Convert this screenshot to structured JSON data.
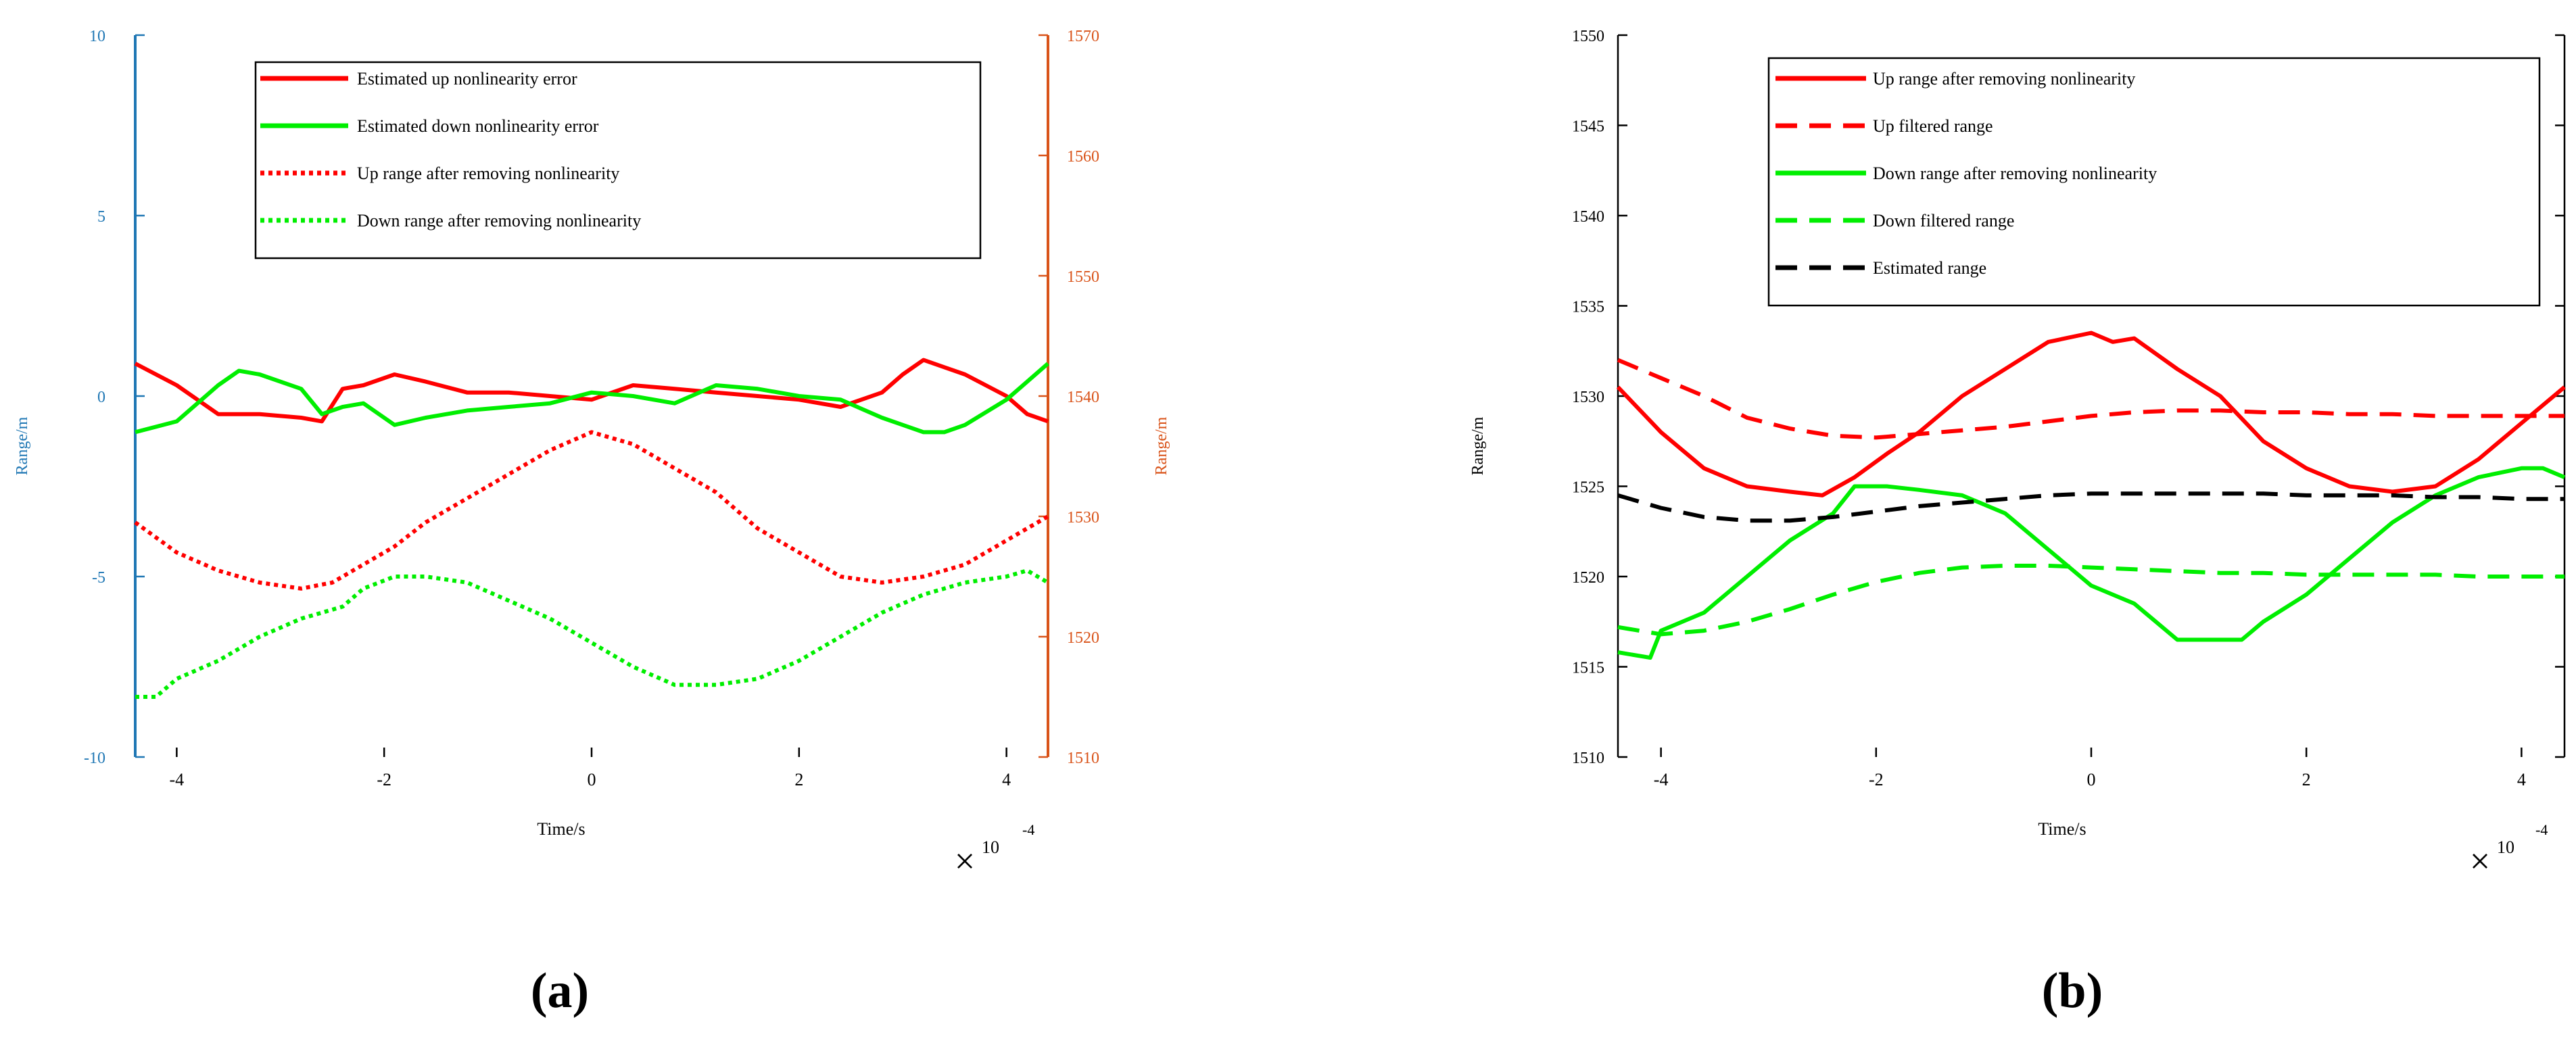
{
  "chart_data": [
    {
      "id": "a",
      "type": "line",
      "panel_label": "(a)",
      "xlabel": "Time/s",
      "x_multiplier_symbol": "×",
      "x_multiplier": "10",
      "x_exponent": "-4",
      "xlim": [
        -4.4,
        4.4
      ],
      "xticks": [
        -4,
        -2,
        0,
        2,
        4
      ],
      "xtick_labels": [
        "-4",
        "-2",
        "0",
        "2",
        "4"
      ],
      "left_axis": {
        "label": "Range/m",
        "color": "#1f77b4",
        "ylim": [
          -10,
          10
        ],
        "ticks": [
          -10,
          -5,
          0,
          5,
          10
        ],
        "tick_labels": [
          "-10",
          "-5",
          "0",
          "5",
          "10"
        ]
      },
      "right_axis": {
        "label": "Range/m",
        "color": "#d95319",
        "ylim": [
          1510,
          1570
        ],
        "ticks": [
          1510,
          1520,
          1530,
          1540,
          1550,
          1560,
          1570
        ],
        "tick_labels": [
          "1510",
          "1520",
          "1530",
          "1540",
          "1550",
          "1560",
          "1570"
        ]
      },
      "legend_position": "top-center",
      "series": [
        {
          "name": "Estimated up nonlinearity error",
          "axis": "left",
          "color": "#ff0000",
          "style": "solid",
          "width": "thick",
          "x": [
            -4.4,
            -4.0,
            -3.6,
            -3.2,
            -2.8,
            -2.6,
            -2.4,
            -2.2,
            -1.9,
            -1.6,
            -1.2,
            -0.8,
            -0.4,
            0,
            0.4,
            0.8,
            1.2,
            1.6,
            2.0,
            2.4,
            2.8,
            3.0,
            3.2,
            3.4,
            3.6,
            3.8,
            4.0,
            4.2,
            4.4
          ],
          "y": [
            0.9,
            0.3,
            -0.5,
            -0.5,
            -0.6,
            -0.7,
            0.2,
            0.3,
            0.6,
            0.4,
            0.1,
            0.1,
            0,
            -0.1,
            0.3,
            0.2,
            0.1,
            0,
            -0.1,
            -0.3,
            0.1,
            0.6,
            1.0,
            0.8,
            0.6,
            0.3,
            0,
            -0.5,
            -0.7
          ]
        },
        {
          "name": "Estimated down nonlinearity error",
          "axis": "left",
          "color": "#00ee00",
          "style": "solid",
          "width": "thick",
          "x": [
            -4.4,
            -4.0,
            -3.6,
            -3.4,
            -3.2,
            -2.8,
            -2.6,
            -2.4,
            -2.2,
            -1.9,
            -1.6,
            -1.2,
            -0.8,
            -0.4,
            0,
            0.4,
            0.8,
            1.2,
            1.6,
            2.0,
            2.4,
            2.8,
            3.0,
            3.2,
            3.4,
            3.6,
            4.0,
            4.2,
            4.4
          ],
          "y": [
            -1.0,
            -0.7,
            0.3,
            0.7,
            0.6,
            0.2,
            -0.5,
            -0.3,
            -0.2,
            -0.8,
            -0.6,
            -0.4,
            -0.3,
            -0.2,
            0.1,
            0,
            -0.2,
            0.3,
            0.2,
            0,
            -0.1,
            -0.6,
            -0.8,
            -1.0,
            -1.0,
            -0.8,
            -0.1,
            0.4,
            0.9
          ]
        },
        {
          "name": "Up range after removing nonlinearity",
          "axis": "right",
          "color": "#ff0000",
          "style": "dotted",
          "width": "thick",
          "x": [
            -4.4,
            -4.0,
            -3.6,
            -3.2,
            -2.8,
            -2.5,
            -2.2,
            -1.9,
            -1.6,
            -1.2,
            -0.8,
            -0.4,
            0,
            0.2,
            0.4,
            0.8,
            1.2,
            1.6,
            2.0,
            2.4,
            2.8,
            3.2,
            3.6,
            4.0,
            4.4
          ],
          "y": [
            1529.5,
            1527,
            1525.5,
            1524.5,
            1524,
            1524.5,
            1526,
            1527.5,
            1529.5,
            1531.5,
            1533.5,
            1535.5,
            1537,
            1536.5,
            1536,
            1534,
            1532,
            1529,
            1527,
            1525,
            1524.5,
            1525,
            1526,
            1528,
            1530
          ]
        },
        {
          "name": "Down range after removing nonlinearity",
          "axis": "right",
          "color": "#00ee00",
          "style": "dotted",
          "width": "thick",
          "x": [
            -4.4,
            -4.2,
            -4.0,
            -3.6,
            -3.2,
            -2.8,
            -2.4,
            -2.2,
            -1.9,
            -1.6,
            -1.2,
            -0.8,
            -0.4,
            0,
            0.4,
            0.8,
            1.2,
            1.6,
            2.0,
            2.4,
            2.8,
            3.2,
            3.6,
            4.0,
            4.2,
            4.4
          ],
          "y": [
            1515,
            1515,
            1516.5,
            1518,
            1520,
            1521.5,
            1522.5,
            1524,
            1525,
            1525,
            1524.5,
            1523,
            1521.5,
            1519.5,
            1517.5,
            1516,
            1516,
            1516.5,
            1518,
            1520,
            1522,
            1523.5,
            1524.5,
            1525,
            1525.5,
            1524.5
          ]
        }
      ]
    },
    {
      "id": "b",
      "type": "line",
      "panel_label": "(b)",
      "xlabel": "Time/s",
      "ylabel": "Range/m",
      "x_multiplier_symbol": "×",
      "x_multiplier": "10",
      "x_exponent": "-4",
      "xlim": [
        -4.4,
        4.4
      ],
      "ylim": [
        1510,
        1550
      ],
      "xticks": [
        -4,
        -2,
        0,
        2,
        4
      ],
      "xtick_labels": [
        "-4",
        "-2",
        "0",
        "2",
        "4"
      ],
      "yticks": [
        1510,
        1515,
        1520,
        1525,
        1530,
        1535,
        1540,
        1545,
        1550
      ],
      "ytick_labels": [
        "1510",
        "1515",
        "1520",
        "1525",
        "1530",
        "1535",
        "1540",
        "1545",
        "1550"
      ],
      "legend_position": "top-center",
      "series": [
        {
          "name": "Up range after removing nonlinearity",
          "color": "#ff0000",
          "style": "solid",
          "width": "thick",
          "x": [
            -4.4,
            -4.0,
            -3.6,
            -3.2,
            -2.8,
            -2.5,
            -2.2,
            -1.9,
            -1.6,
            -1.2,
            -0.8,
            -0.4,
            0,
            0.2,
            0.4,
            0.8,
            1.2,
            1.6,
            2.0,
            2.4,
            2.8,
            3.2,
            3.6,
            4.0,
            4.4
          ],
          "y": [
            1530.5,
            1528,
            1526,
            1525,
            1524.7,
            1524.5,
            1525.5,
            1526.8,
            1528,
            1530,
            1531.5,
            1533,
            1533.5,
            1533,
            1533.2,
            1531.5,
            1530,
            1527.5,
            1526,
            1525,
            1524.7,
            1525,
            1526.5,
            1528.5,
            1530.5
          ]
        },
        {
          "name": "Up filtered range",
          "color": "#ff0000",
          "style": "dashed",
          "width": "thick",
          "x": [
            -4.4,
            -4.0,
            -3.6,
            -3.2,
            -2.8,
            -2.4,
            -2.0,
            -1.6,
            -1.2,
            -0.8,
            -0.4,
            0,
            0.4,
            0.8,
            1.2,
            1.6,
            2.0,
            2.4,
            2.8,
            3.2,
            3.6,
            4.0,
            4.4
          ],
          "y": [
            1532,
            1531,
            1530,
            1528.8,
            1528.2,
            1527.8,
            1527.7,
            1527.9,
            1528.1,
            1528.3,
            1528.6,
            1528.9,
            1529.1,
            1529.2,
            1529.2,
            1529.1,
            1529.1,
            1529,
            1529,
            1528.9,
            1528.9,
            1528.9,
            1528.9
          ]
        },
        {
          "name": "Down range after removing nonlinearity",
          "color": "#00ee00",
          "style": "solid",
          "width": "thick",
          "x": [
            -4.4,
            -4.1,
            -4.0,
            -3.6,
            -3.2,
            -2.8,
            -2.4,
            -2.2,
            -1.9,
            -1.6,
            -1.2,
            -0.8,
            -0.4,
            0,
            0.4,
            0.8,
            1.2,
            1.4,
            1.6,
            2.0,
            2.4,
            2.8,
            3.2,
            3.6,
            4.0,
            4.2,
            4.4
          ],
          "y": [
            1515.8,
            1515.5,
            1517,
            1518,
            1520,
            1522,
            1523.5,
            1525,
            1525,
            1524.8,
            1524.5,
            1523.5,
            1521.5,
            1519.5,
            1518.5,
            1516.5,
            1516.5,
            1516.5,
            1517.5,
            1519,
            1521,
            1523,
            1524.5,
            1525.5,
            1526,
            1526,
            1525.5
          ]
        },
        {
          "name": "Down filtered range",
          "color": "#00ee00",
          "style": "dashed",
          "width": "thick",
          "x": [
            -4.4,
            -4.0,
            -3.6,
            -3.2,
            -2.8,
            -2.4,
            -2.0,
            -1.6,
            -1.2,
            -0.8,
            -0.4,
            0,
            0.4,
            0.8,
            1.2,
            1.6,
            2.0,
            2.4,
            2.8,
            3.2,
            3.6,
            4.0,
            4.4
          ],
          "y": [
            1517.2,
            1516.8,
            1517.0,
            1517.5,
            1518.2,
            1519.0,
            1519.7,
            1520.2,
            1520.5,
            1520.6,
            1520.6,
            1520.5,
            1520.4,
            1520.3,
            1520.2,
            1520.2,
            1520.1,
            1520.1,
            1520.1,
            1520.1,
            1520,
            1520,
            1520
          ]
        },
        {
          "name": "Estimated range",
          "color": "#000000",
          "style": "dashed",
          "width": "thick",
          "x": [
            -4.4,
            -4.0,
            -3.6,
            -3.2,
            -2.8,
            -2.4,
            -2.0,
            -1.6,
            -1.2,
            -0.8,
            -0.4,
            0,
            0.4,
            0.8,
            1.2,
            1.6,
            2.0,
            2.4,
            2.8,
            3.2,
            3.6,
            4.0,
            4.4
          ],
          "y": [
            1524.5,
            1523.8,
            1523.3,
            1523.1,
            1523.1,
            1523.3,
            1523.6,
            1523.9,
            1524.1,
            1524.3,
            1524.5,
            1524.6,
            1524.6,
            1524.6,
            1524.6,
            1524.6,
            1524.5,
            1524.5,
            1524.5,
            1524.4,
            1524.4,
            1524.3,
            1524.3
          ]
        }
      ]
    }
  ]
}
